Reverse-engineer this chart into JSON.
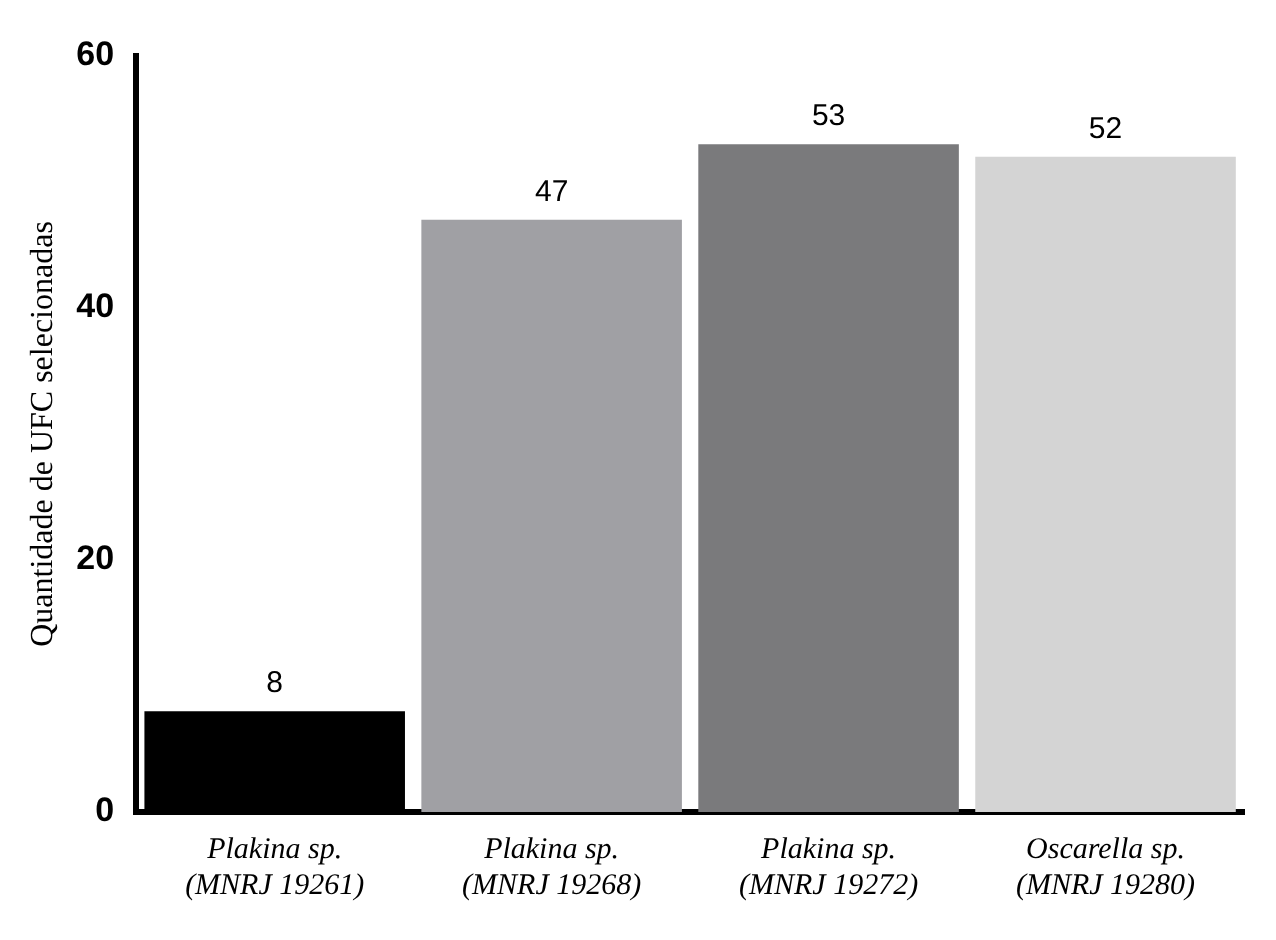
{
  "chart_data": {
    "type": "bar",
    "ylabel": "Quantidade de UFC selecionadas",
    "categories": [
      "Plakina sp. (MNRJ 19261)",
      "Plakina sp. (MNRJ 19268)",
      "Plakina sp. (MNRJ 19272)",
      "Oscarella sp. (MNRJ 19280)"
    ],
    "values": [
      8,
      47,
      53,
      52
    ],
    "colors": [
      "#000000",
      "#a0a0a4",
      "#7a7a7c",
      "#d4d4d4"
    ],
    "ylim": [
      0,
      60
    ],
    "yticks": [
      0,
      20,
      40,
      60
    ],
    "grid": false,
    "legend": false,
    "data_labels": true
  }
}
